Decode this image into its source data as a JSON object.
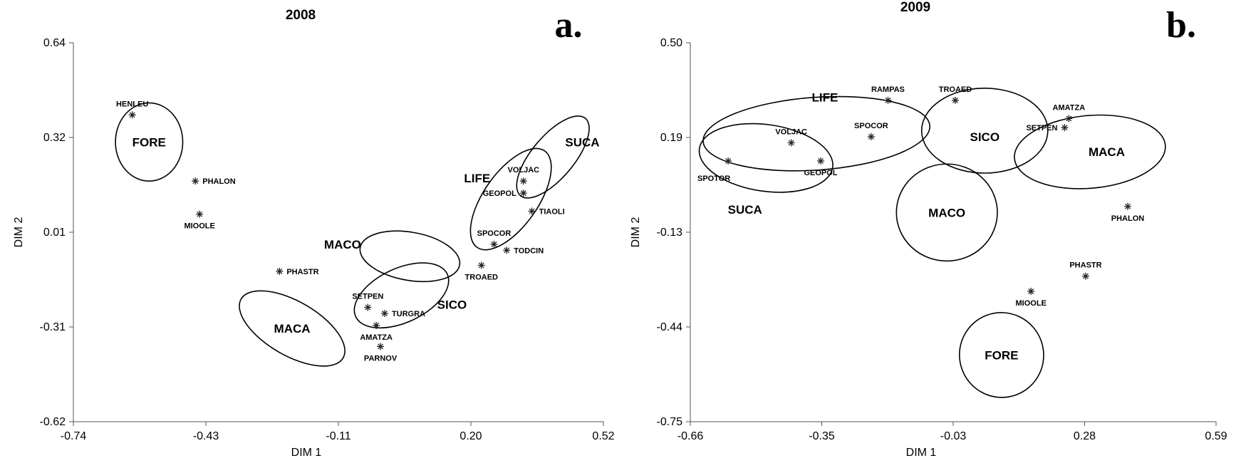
{
  "chart_data": [
    {
      "type": "scatter",
      "panel": "a.",
      "title": "2008",
      "xlabel": "DIM 1",
      "ylabel": "DIM 2",
      "xlim": [
        -0.74,
        0.52
      ],
      "ylim": [
        -0.62,
        0.64
      ],
      "xticks": [
        "-0.74",
        "-0.43",
        "-0.11",
        "0.20",
        "0.52"
      ],
      "yticks": [
        "0.64",
        "0.32",
        "0.01",
        "-0.31",
        "-0.62"
      ],
      "points": [
        {
          "label": "HENLEU",
          "x": -0.6,
          "y": 0.4,
          "anchor": "above"
        },
        {
          "label": "PHALON",
          "x": -0.45,
          "y": 0.18,
          "anchor": "right"
        },
        {
          "label": "MIOOLE",
          "x": -0.44,
          "y": 0.07,
          "anchor": "below"
        },
        {
          "label": "PHASTR",
          "x": -0.25,
          "y": -0.12,
          "anchor": "right"
        },
        {
          "label": "SETPEN",
          "x": -0.04,
          "y": -0.24,
          "anchor": "above"
        },
        {
          "label": "TURGRA",
          "x": 0.0,
          "y": -0.26,
          "anchor": "right"
        },
        {
          "label": "AMATZA",
          "x": -0.02,
          "y": -0.3,
          "anchor": "below"
        },
        {
          "label": "PARNOV",
          "x": -0.01,
          "y": -0.37,
          "anchor": "below"
        },
        {
          "label": "TROAED",
          "x": 0.23,
          "y": -0.1,
          "anchor": "below"
        },
        {
          "label": "SPOCOR",
          "x": 0.26,
          "y": -0.03,
          "anchor": "above"
        },
        {
          "label": "TODCIN",
          "x": 0.29,
          "y": -0.05,
          "anchor": "right"
        },
        {
          "label": "VOLJAC",
          "x": 0.33,
          "y": 0.18,
          "anchor": "above"
        },
        {
          "label": "GEOPOL",
          "x": 0.33,
          "y": 0.14,
          "anchor": "left"
        },
        {
          "label": "TIAOLI",
          "x": 0.35,
          "y": 0.08,
          "anchor": "right"
        }
      ],
      "groups": [
        {
          "label": "FORE",
          "cx": -0.56,
          "cy": 0.31,
          "rx": 0.08,
          "ry": 0.13,
          "rot": 0,
          "lx": -0.56,
          "ly": 0.31
        },
        {
          "label": "MACA",
          "cx": -0.22,
          "cy": -0.31,
          "rx": 0.14,
          "ry": 0.09,
          "rot": 30,
          "lx": -0.22,
          "ly": -0.31
        },
        {
          "label": "MACO",
          "cx": 0.06,
          "cy": -0.07,
          "rx": 0.12,
          "ry": 0.08,
          "rot": 10,
          "lx": -0.1,
          "ly": -0.03
        },
        {
          "label": "SICO",
          "cx": 0.04,
          "cy": -0.2,
          "rx": 0.12,
          "ry": 0.09,
          "rot": -25,
          "lx": 0.16,
          "ly": -0.23
        },
        {
          "label": "LIFE",
          "cx": 0.3,
          "cy": 0.12,
          "rx": 0.14,
          "ry": 0.09,
          "rot": -55,
          "lx": 0.22,
          "ly": 0.19
        },
        {
          "label": "SUCA",
          "cx": 0.4,
          "cy": 0.26,
          "rx": 0.12,
          "ry": 0.07,
          "rot": -50,
          "lx": 0.47,
          "ly": 0.31
        }
      ]
    },
    {
      "type": "scatter",
      "panel": "b.",
      "title": "2009",
      "xlabel": "DIM 1",
      "ylabel": "DIM 2",
      "xlim": [
        -0.66,
        0.59
      ],
      "ylim": [
        -0.75,
        0.5
      ],
      "xticks": [
        "-0.66",
        "-0.35",
        "-0.03",
        "0.28",
        "0.59"
      ],
      "yticks": [
        "0.50",
        "0.19",
        "-0.13",
        "-0.44",
        "-0.75"
      ],
      "points": [
        {
          "label": "RAMPAS",
          "x": -0.19,
          "y": 0.31,
          "anchor": "above"
        },
        {
          "label": "TROAED",
          "x": -0.03,
          "y": 0.31,
          "anchor": "above"
        },
        {
          "label": "AMATZA",
          "x": 0.24,
          "y": 0.25,
          "anchor": "above"
        },
        {
          "label": "SETPEN",
          "x": 0.23,
          "y": 0.22,
          "anchor": "left"
        },
        {
          "label": "SPOCOR",
          "x": -0.23,
          "y": 0.19,
          "anchor": "above"
        },
        {
          "label": "VOLJAC",
          "x": -0.42,
          "y": 0.17,
          "anchor": "above"
        },
        {
          "label": "GEOPOL",
          "x": -0.35,
          "y": 0.11,
          "anchor": "below"
        },
        {
          "label": "SPOTOR",
          "x": -0.57,
          "y": 0.11,
          "anchor": "below-left"
        },
        {
          "label": "PHALON",
          "x": 0.38,
          "y": -0.04,
          "anchor": "below"
        },
        {
          "label": "PHASTR",
          "x": 0.28,
          "y": -0.27,
          "anchor": "above"
        },
        {
          "label": "MIOOLE",
          "x": 0.15,
          "y": -0.32,
          "anchor": "below"
        }
      ],
      "groups": [
        {
          "label": "LIFE",
          "cx": -0.36,
          "cy": 0.2,
          "rx": 0.27,
          "ry": 0.12,
          "rot": -4,
          "lx": -0.34,
          "ly": 0.32
        },
        {
          "label": "SUCA",
          "cx": -0.48,
          "cy": 0.12,
          "rx": 0.16,
          "ry": 0.11,
          "rot": 8,
          "lx": -0.53,
          "ly": -0.05
        },
        {
          "label": "SICO",
          "cx": 0.04,
          "cy": 0.21,
          "rx": 0.15,
          "ry": 0.14,
          "rot": 0,
          "lx": 0.04,
          "ly": 0.19
        },
        {
          "label": "MACA",
          "cx": 0.29,
          "cy": 0.14,
          "rx": 0.18,
          "ry": 0.12,
          "rot": -5,
          "lx": 0.33,
          "ly": 0.14
        },
        {
          "label": "MACO",
          "cx": -0.05,
          "cy": -0.06,
          "rx": 0.12,
          "ry": 0.16,
          "rot": 0,
          "lx": -0.05,
          "ly": -0.06
        },
        {
          "label": "FORE",
          "cx": 0.08,
          "cy": -0.53,
          "rx": 0.1,
          "ry": 0.14,
          "rot": -20,
          "lx": 0.08,
          "ly": -0.53
        }
      ]
    }
  ]
}
